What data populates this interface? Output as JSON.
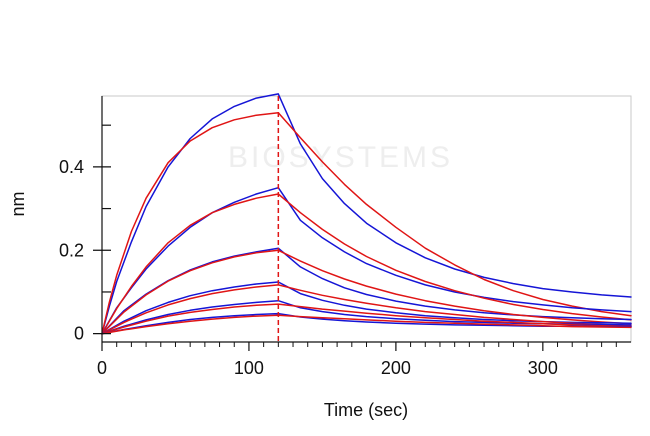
{
  "chart_data": {
    "type": "line",
    "title": "",
    "xlabel": "Time (sec)",
    "ylabel": "nm",
    "xlim": [
      0,
      360
    ],
    "ylim": [
      -0.02,
      0.57
    ],
    "x_ticks": [
      0,
      100,
      200,
      300
    ],
    "x_tick_labels": [
      "0",
      "100",
      "200",
      "300"
    ],
    "y_ticks": [
      0,
      0.2,
      0.4
    ],
    "y_tick_labels": [
      "0",
      "0.2",
      "0.4"
    ],
    "y_minor_ticks": [
      0.1,
      0.3,
      0.5
    ],
    "grid": false,
    "legend": "none",
    "watermark": "BIOSYSTEMS",
    "dissociation_start_x": 120,
    "colors": {
      "measured": "#1515d6",
      "fit": "#e01515",
      "marker_line": "#e01515"
    },
    "series": [
      {
        "kind": "measured",
        "x": [
          0,
          5,
          10,
          20,
          30,
          45,
          60,
          75,
          90,
          105,
          120,
          135,
          150,
          165,
          180,
          200,
          220,
          240,
          260,
          280,
          300,
          320,
          340,
          360
        ],
        "y": [
          0.0,
          0.065,
          0.125,
          0.22,
          0.305,
          0.4,
          0.468,
          0.515,
          0.545,
          0.565,
          0.575,
          0.455,
          0.372,
          0.312,
          0.265,
          0.218,
          0.182,
          0.155,
          0.135,
          0.12,
          0.108,
          0.1,
          0.093,
          0.088
        ]
      },
      {
        "kind": "fit",
        "x": [
          0,
          5,
          10,
          20,
          30,
          45,
          60,
          75,
          90,
          105,
          120,
          135,
          150,
          165,
          180,
          200,
          220,
          240,
          260,
          280,
          300,
          320,
          340,
          360
        ],
        "y": [
          0.0,
          0.075,
          0.14,
          0.245,
          0.325,
          0.41,
          0.462,
          0.494,
          0.513,
          0.524,
          0.53,
          0.47,
          0.412,
          0.358,
          0.31,
          0.255,
          0.205,
          0.165,
          0.13,
          0.103,
          0.082,
          0.066,
          0.053,
          0.043
        ]
      },
      {
        "kind": "measured",
        "x": [
          0,
          10,
          20,
          30,
          45,
          60,
          75,
          90,
          105,
          120,
          135,
          150,
          165,
          180,
          200,
          220,
          240,
          260,
          280,
          300,
          320,
          340,
          360
        ],
        "y": [
          0.0,
          0.062,
          0.11,
          0.155,
          0.21,
          0.255,
          0.29,
          0.315,
          0.335,
          0.35,
          0.272,
          0.23,
          0.196,
          0.168,
          0.14,
          0.117,
          0.1,
          0.087,
          0.077,
          0.069,
          0.062,
          0.057,
          0.053
        ]
      },
      {
        "kind": "fit",
        "x": [
          0,
          10,
          20,
          30,
          45,
          60,
          75,
          90,
          105,
          120,
          135,
          150,
          165,
          180,
          200,
          220,
          240,
          260,
          280,
          300,
          320,
          340,
          360
        ],
        "y": [
          0.0,
          0.06,
          0.113,
          0.16,
          0.218,
          0.26,
          0.29,
          0.31,
          0.325,
          0.335,
          0.29,
          0.25,
          0.215,
          0.185,
          0.152,
          0.125,
          0.103,
          0.085,
          0.07,
          0.058,
          0.048,
          0.04,
          0.033
        ]
      },
      {
        "kind": "measured",
        "x": [
          0,
          15,
          30,
          45,
          60,
          75,
          90,
          105,
          120,
          135,
          150,
          165,
          180,
          200,
          220,
          240,
          260,
          280,
          300,
          320,
          340,
          360
        ],
        "y": [
          0.0,
          0.055,
          0.095,
          0.127,
          0.153,
          0.172,
          0.186,
          0.196,
          0.205,
          0.16,
          0.132,
          0.11,
          0.094,
          0.078,
          0.066,
          0.057,
          0.05,
          0.045,
          0.041,
          0.038,
          0.036,
          0.034
        ]
      },
      {
        "kind": "fit",
        "x": [
          0,
          15,
          30,
          45,
          60,
          75,
          90,
          105,
          120,
          135,
          150,
          165,
          180,
          200,
          220,
          240,
          260,
          280,
          300,
          320,
          340,
          360
        ],
        "y": [
          0.0,
          0.052,
          0.093,
          0.126,
          0.151,
          0.17,
          0.184,
          0.194,
          0.2,
          0.174,
          0.151,
          0.131,
          0.114,
          0.095,
          0.079,
          0.066,
          0.055,
          0.046,
          0.039,
          0.033,
          0.028,
          0.024
        ]
      },
      {
        "kind": "measured",
        "x": [
          0,
          15,
          30,
          45,
          60,
          75,
          90,
          105,
          120,
          135,
          150,
          165,
          180,
          200,
          220,
          240,
          260,
          280,
          300,
          320,
          340,
          360
        ],
        "y": [
          0.0,
          0.03,
          0.055,
          0.075,
          0.091,
          0.103,
          0.112,
          0.119,
          0.124,
          0.096,
          0.08,
          0.068,
          0.059,
          0.05,
          0.043,
          0.038,
          0.034,
          0.031,
          0.029,
          0.027,
          0.026,
          0.025
        ]
      },
      {
        "kind": "fit",
        "x": [
          0,
          15,
          30,
          45,
          60,
          75,
          90,
          105,
          120,
          135,
          150,
          165,
          180,
          200,
          220,
          240,
          260,
          280,
          300,
          320,
          340,
          360
        ],
        "y": [
          0.0,
          0.027,
          0.05,
          0.069,
          0.084,
          0.096,
          0.105,
          0.112,
          0.117,
          0.104,
          0.092,
          0.082,
          0.073,
          0.062,
          0.053,
          0.046,
          0.039,
          0.034,
          0.029,
          0.025,
          0.022,
          0.019
        ]
      },
      {
        "kind": "measured",
        "x": [
          0,
          15,
          30,
          45,
          60,
          75,
          90,
          105,
          120,
          135,
          150,
          165,
          180,
          200,
          220,
          240,
          260,
          280,
          300,
          320,
          340,
          360
        ],
        "y": [
          0.0,
          0.018,
          0.033,
          0.046,
          0.056,
          0.064,
          0.07,
          0.075,
          0.079,
          0.062,
          0.053,
          0.046,
          0.041,
          0.036,
          0.032,
          0.029,
          0.027,
          0.025,
          0.024,
          0.023,
          0.022,
          0.021
        ]
      },
      {
        "kind": "fit",
        "x": [
          0,
          15,
          30,
          45,
          60,
          75,
          90,
          105,
          120,
          135,
          150,
          165,
          180,
          200,
          220,
          240,
          260,
          280,
          300,
          320,
          340,
          360
        ],
        "y": [
          0.0,
          0.016,
          0.03,
          0.042,
          0.051,
          0.058,
          0.064,
          0.068,
          0.071,
          0.065,
          0.059,
          0.054,
          0.049,
          0.043,
          0.038,
          0.034,
          0.03,
          0.027,
          0.024,
          0.021,
          0.019,
          0.017
        ]
      },
      {
        "kind": "measured",
        "x": [
          0,
          15,
          30,
          45,
          60,
          75,
          90,
          105,
          120,
          135,
          150,
          165,
          180,
          200,
          220,
          240,
          260,
          280,
          300,
          320,
          340,
          360
        ],
        "y": [
          0.0,
          0.01,
          0.019,
          0.027,
          0.034,
          0.039,
          0.043,
          0.046,
          0.048,
          0.04,
          0.035,
          0.031,
          0.028,
          0.025,
          0.023,
          0.021,
          0.02,
          0.019,
          0.018,
          0.018,
          0.017,
          0.017
        ]
      },
      {
        "kind": "fit",
        "x": [
          0,
          15,
          30,
          45,
          60,
          75,
          90,
          105,
          120,
          135,
          150,
          165,
          180,
          200,
          220,
          240,
          260,
          280,
          300,
          320,
          340,
          360
        ],
        "y": [
          0.0,
          0.009,
          0.017,
          0.024,
          0.03,
          0.035,
          0.039,
          0.042,
          0.044,
          0.041,
          0.038,
          0.036,
          0.033,
          0.03,
          0.027,
          0.025,
          0.023,
          0.021,
          0.019,
          0.017,
          0.016,
          0.015
        ]
      }
    ]
  }
}
